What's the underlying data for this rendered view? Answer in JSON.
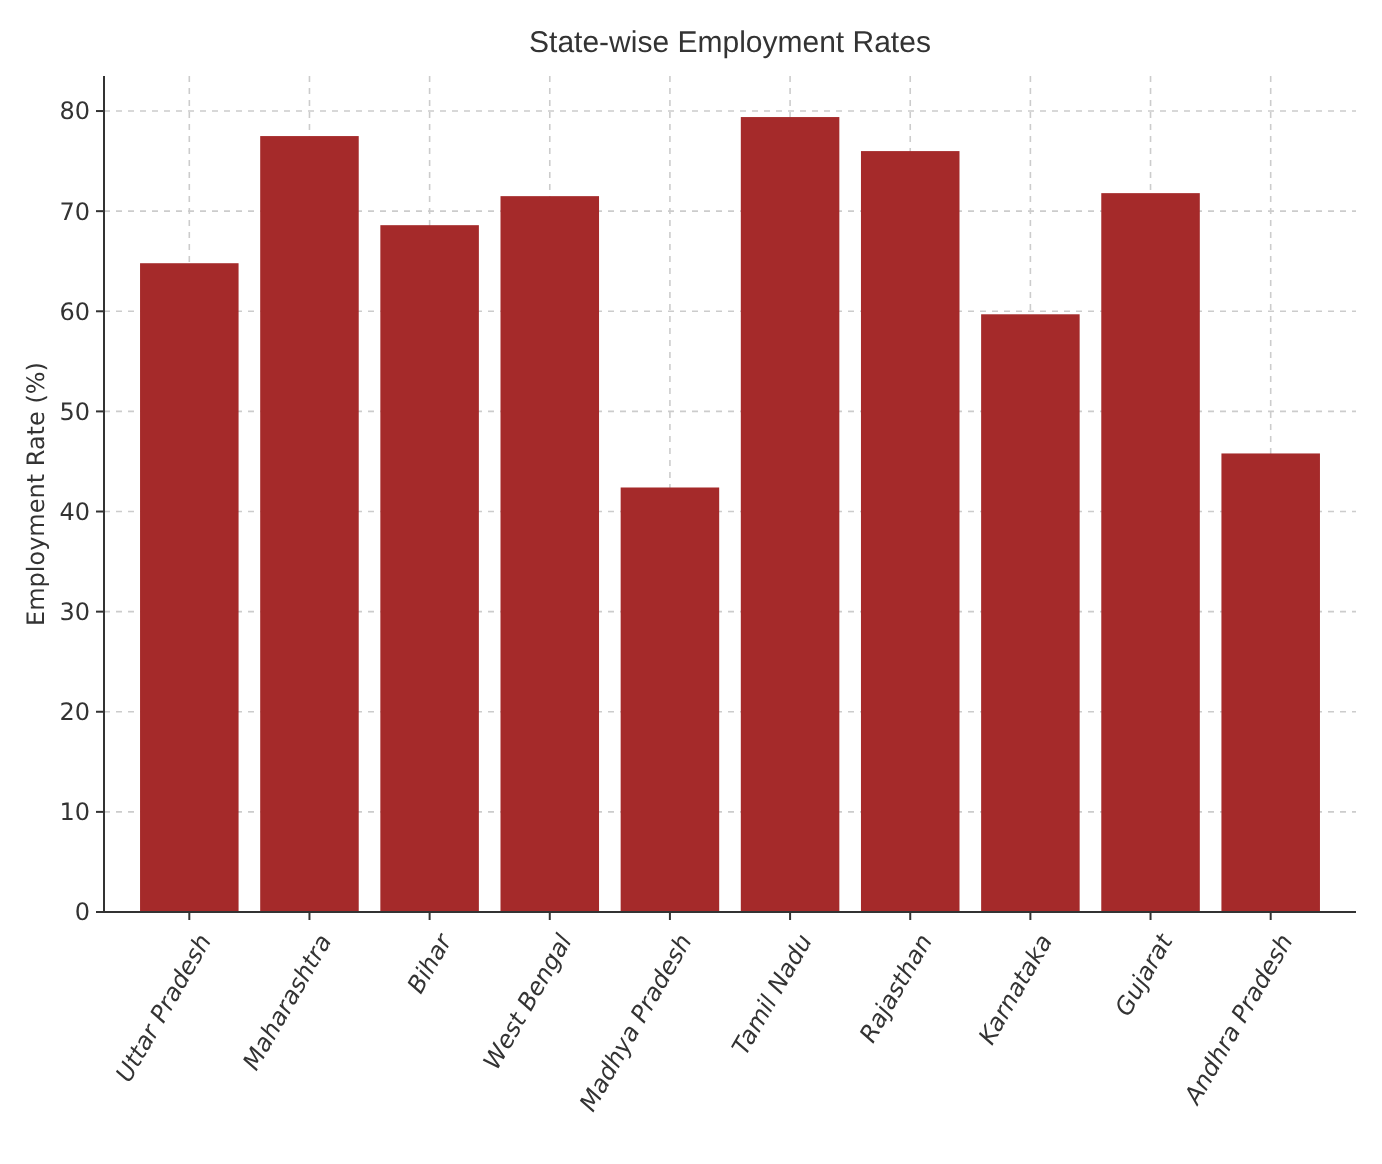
{
  "chart_data": {
    "type": "bar",
    "title": "State-wise Employment Rates",
    "ylabel": "Employment Rate (%)",
    "categories": [
      "Uttar Pradesh",
      "Maharashtra",
      "Bihar",
      "West Bengal",
      "Madhya Pradesh",
      "Tamil Nadu",
      "Rajasthan",
      "Karnataka",
      "Gujarat",
      "Andhra Pradesh"
    ],
    "values": [
      64.8,
      77.5,
      68.6,
      71.5,
      42.4,
      79.4,
      76.0,
      59.7,
      71.8,
      45.8
    ],
    "color": "#a52a2a",
    "ylim": [
      0,
      83.5
    ],
    "yticks": [
      0,
      10,
      20,
      30,
      40,
      50,
      60,
      70,
      80
    ],
    "grid": true
  }
}
